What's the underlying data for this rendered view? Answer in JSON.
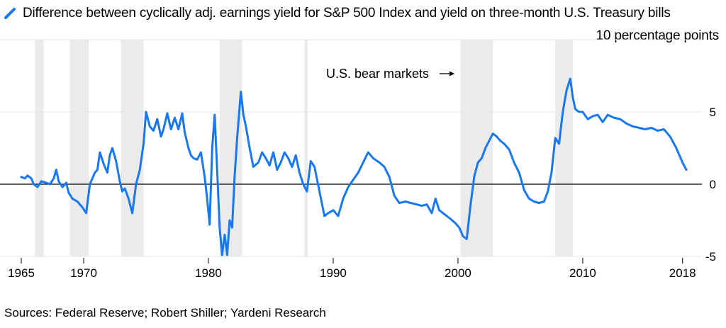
{
  "header": {
    "legend_label": "Difference between cyclically adj. earnings yield for S&P 500 Index and yield on three-month U.S. Treasury bills",
    "unit_label": "10 percentage points"
  },
  "footer": {
    "source": "Sources: Federal Reserve; Robert Shiller; Yardeni Research"
  },
  "colors": {
    "series": "#1877f2",
    "shading": "#ebebeb",
    "gridline": "#e6e6e6",
    "zero_line": "#000000"
  },
  "chart_data": {
    "type": "line",
    "title": "",
    "xlabel": "",
    "ylabel": "",
    "xlim": [
      1965,
      2019.5
    ],
    "ylim": [
      -5,
      10
    ],
    "x_ticks": [
      1965,
      1970,
      1980,
      1990,
      2000,
      2010,
      2018
    ],
    "x_tick_labels": [
      "1965",
      "1970",
      "1980",
      "1990",
      "2000",
      "2010",
      "2018"
    ],
    "y_ticks": [
      5,
      0,
      -5
    ],
    "y_tick_labels": [
      "5",
      "0",
      "-5"
    ],
    "shaded_periods_label": "U.S. bear markets",
    "shaded_periods": [
      [
        1966.1,
        1966.8
      ],
      [
        1968.9,
        1970.4
      ],
      [
        1973.0,
        1974.8
      ],
      [
        1980.9,
        1982.7
      ],
      [
        1987.7,
        1987.95
      ],
      [
        2000.2,
        2002.8
      ],
      [
        2007.8,
        2009.2
      ]
    ],
    "series": [
      {
        "name": "Difference between cyclically adj. earnings yield for S&P 500 Index and yield on three-month U.S. Treasury bills",
        "x": [
          1965.0,
          1965.3,
          1965.5,
          1965.8,
          1966.0,
          1966.3,
          1966.6,
          1967.0,
          1967.3,
          1967.6,
          1967.8,
          1968.0,
          1968.3,
          1968.6,
          1968.8,
          1969.1,
          1969.5,
          1969.9,
          1970.2,
          1970.5,
          1970.9,
          1971.1,
          1971.3,
          1971.6,
          1971.9,
          1972.1,
          1972.3,
          1972.6,
          1972.9,
          1973.1,
          1973.3,
          1973.6,
          1973.9,
          1974.2,
          1974.5,
          1974.8,
          1975.0,
          1975.3,
          1975.6,
          1975.9,
          1976.2,
          1976.4,
          1976.7,
          1977.0,
          1977.3,
          1977.6,
          1977.9,
          1978.1,
          1978.4,
          1978.6,
          1978.8,
          1979.1,
          1979.4,
          1979.7,
          1979.9,
          1980.1,
          1980.3,
          1980.5,
          1980.7,
          1980.9,
          1981.1,
          1981.3,
          1981.5,
          1981.7,
          1981.9,
          1982.1,
          1982.3,
          1982.6,
          1982.8,
          1983.0,
          1983.3,
          1983.6,
          1984.0,
          1984.3,
          1984.6,
          1984.9,
          1985.2,
          1985.5,
          1985.8,
          1986.1,
          1986.4,
          1986.7,
          1987.0,
          1987.3,
          1987.6,
          1987.9,
          1988.2,
          1988.5,
          1988.9,
          1989.3,
          1989.6,
          1990.0,
          1990.4,
          1990.8,
          1991.2,
          1991.6,
          1992.0,
          1992.4,
          1992.8,
          1993.2,
          1993.7,
          1994.1,
          1994.5,
          1994.9,
          1995.3,
          1995.8,
          1996.2,
          1996.7,
          1997.1,
          1997.5,
          1997.9,
          1998.2,
          1998.5,
          1998.8,
          1999.1,
          1999.4,
          1999.8,
          2000.1,
          2000.4,
          2000.7,
          2001.0,
          2001.3,
          2001.6,
          2001.9,
          2002.2,
          2002.5,
          2002.8,
          2003.1,
          2003.4,
          2003.7,
          2004.1,
          2004.5,
          2004.9,
          2005.3,
          2005.7,
          2006.1,
          2006.5,
          2006.9,
          2007.2,
          2007.5,
          2007.8,
          2008.1,
          2008.4,
          2008.7,
          2009.0,
          2009.2,
          2009.4,
          2009.7,
          2010.0,
          2010.4,
          2010.8,
          2011.2,
          2011.6,
          2012.0,
          2012.5,
          2013.0,
          2013.5,
          2014.0,
          2014.5,
          2015.0,
          2015.5,
          2016.0,
          2016.5,
          2017.0,
          2017.5,
          2018.0,
          2018.3
        ],
        "values": [
          0.5,
          0.4,
          0.6,
          0.4,
          0.0,
          -0.2,
          0.2,
          0.1,
          0.0,
          0.4,
          1.0,
          0.2,
          -0.2,
          0.1,
          -0.6,
          -1.0,
          -1.2,
          -1.6,
          -2.0,
          0.0,
          0.8,
          1.0,
          2.2,
          1.4,
          0.8,
          2.0,
          2.5,
          1.6,
          0.2,
          -0.5,
          -0.3,
          -1.0,
          -2.0,
          0.0,
          1.0,
          2.8,
          5.0,
          4.0,
          3.7,
          4.5,
          3.3,
          3.8,
          4.9,
          3.8,
          4.6,
          3.8,
          4.9,
          3.6,
          2.5,
          2.0,
          1.8,
          1.7,
          2.2,
          0.5,
          -1.0,
          -2.8,
          2.5,
          4.8,
          1.0,
          -3.0,
          -4.9,
          -3.5,
          -4.9,
          -2.5,
          -3.0,
          0.5,
          3.2,
          6.4,
          4.8,
          4.0,
          2.5,
          1.2,
          1.5,
          2.2,
          1.8,
          1.3,
          2.2,
          1.0,
          1.5,
          2.2,
          1.8,
          1.2,
          2.0,
          0.8,
          0.0,
          -0.5,
          1.6,
          1.2,
          -0.5,
          -2.2,
          -2.0,
          -1.8,
          -2.2,
          -1.0,
          -0.2,
          0.3,
          0.8,
          1.5,
          2.2,
          1.8,
          1.5,
          1.2,
          0.5,
          -0.8,
          -1.3,
          -1.2,
          -1.3,
          -1.4,
          -1.5,
          -1.4,
          -2.0,
          -1.0,
          -1.8,
          -2.0,
          -2.2,
          -2.4,
          -2.7,
          -3.0,
          -3.6,
          -3.8,
          -1.5,
          0.5,
          1.5,
          1.8,
          2.5,
          3.0,
          3.5,
          3.3,
          3.0,
          2.8,
          2.4,
          1.5,
          0.8,
          -0.4,
          -1.0,
          -1.2,
          -1.3,
          -1.2,
          -0.5,
          0.8,
          3.2,
          2.8,
          5.0,
          6.5,
          7.3,
          6.0,
          5.2,
          5.0,
          5.0,
          4.5,
          4.7,
          4.8,
          4.3,
          4.8,
          4.6,
          4.5,
          4.2,
          4.0,
          3.9,
          3.8,
          3.9,
          3.7,
          3.8,
          3.3,
          2.5,
          1.5,
          1.0
        ]
      }
    ]
  }
}
